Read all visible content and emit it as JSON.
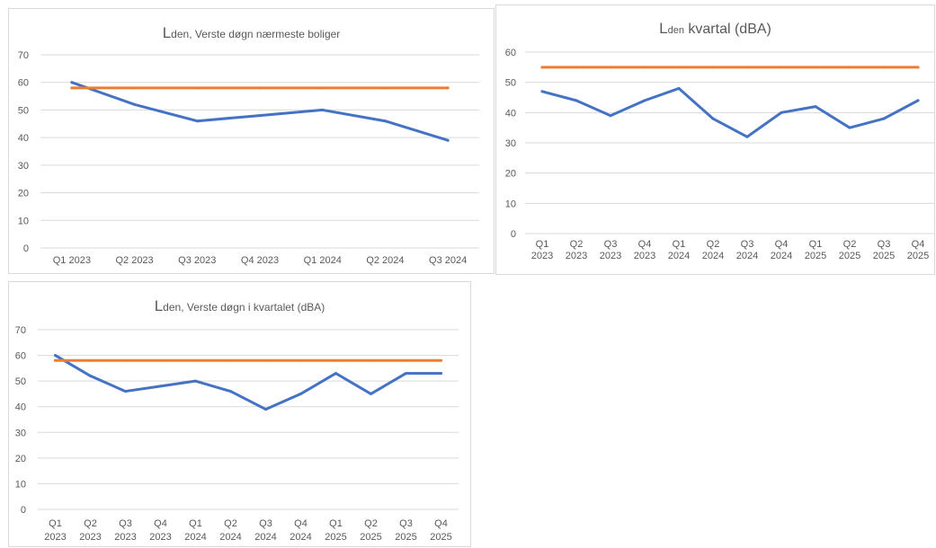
{
  "colors": {
    "series": "#4472c4",
    "limit": "#ed7d31",
    "grid": "#d9d9d9",
    "text": "#595959"
  },
  "chart_data": [
    {
      "type": "line",
      "title": {
        "big": "L",
        "sub": "den",
        "rest": ", Verste døgn nærmeste boliger"
      },
      "categories": [
        "Q1 2023",
        "Q2 2023",
        "Q3 2023",
        "Q4 2023",
        "Q1 2024",
        "Q2 2024",
        "Q3 2024"
      ],
      "ylim": [
        0,
        70
      ],
      "yticks": [
        0,
        10,
        20,
        30,
        40,
        50,
        60,
        70
      ],
      "grid": true,
      "series": [
        {
          "values": [
            60,
            52,
            46,
            48,
            50,
            46,
            39
          ],
          "color": "#4472c4"
        },
        {
          "values": [
            58,
            58,
            58,
            58,
            58,
            58,
            58
          ],
          "color": "#ed7d31"
        }
      ]
    },
    {
      "type": "line",
      "title": {
        "big": "L",
        "sub": "den",
        "rest": " kvartal (dBA)"
      },
      "categories": [
        "Q1 2023",
        "Q2 2023",
        "Q3 2023",
        "Q4 2023",
        "Q1 2024",
        "Q2 2024",
        "Q3 2024",
        "Q4 2024",
        "Q1 2025",
        "Q2 2025",
        "Q3 2025",
        "Q4 2025"
      ],
      "ylim": [
        0,
        60
      ],
      "yticks": [
        0,
        10,
        20,
        30,
        40,
        50,
        60
      ],
      "grid": true,
      "series": [
        {
          "values": [
            47,
            44,
            39,
            44,
            48,
            38,
            32,
            40,
            42,
            35,
            38,
            44
          ],
          "color": "#4472c4"
        },
        {
          "values": [
            55,
            55,
            55,
            55,
            55,
            55,
            55,
            55,
            55,
            55,
            55,
            55
          ],
          "color": "#ed7d31"
        }
      ]
    },
    {
      "type": "line",
      "title": {
        "big": "L",
        "sub": "den",
        "rest": ", Verste døgn i kvartalet (dBA)"
      },
      "categories": [
        "Q1 2023",
        "Q2 2023",
        "Q3 2023",
        "Q4 2023",
        "Q1 2024",
        "Q2 2024",
        "Q3 2024",
        "Q4 2024",
        "Q1 2025",
        "Q2 2025",
        "Q3 2025",
        "Q4 2025"
      ],
      "ylim": [
        0,
        70
      ],
      "yticks": [
        0,
        10,
        20,
        30,
        40,
        50,
        60,
        70
      ],
      "grid": true,
      "series": [
        {
          "values": [
            60,
            52,
            46,
            48,
            50,
            46,
            39,
            45,
            53,
            45,
            53,
            53
          ],
          "color": "#4472c4"
        },
        {
          "values": [
            58,
            58,
            58,
            58,
            58,
            58,
            58,
            58,
            58,
            58,
            58,
            58
          ],
          "color": "#ed7d31"
        }
      ]
    }
  ]
}
